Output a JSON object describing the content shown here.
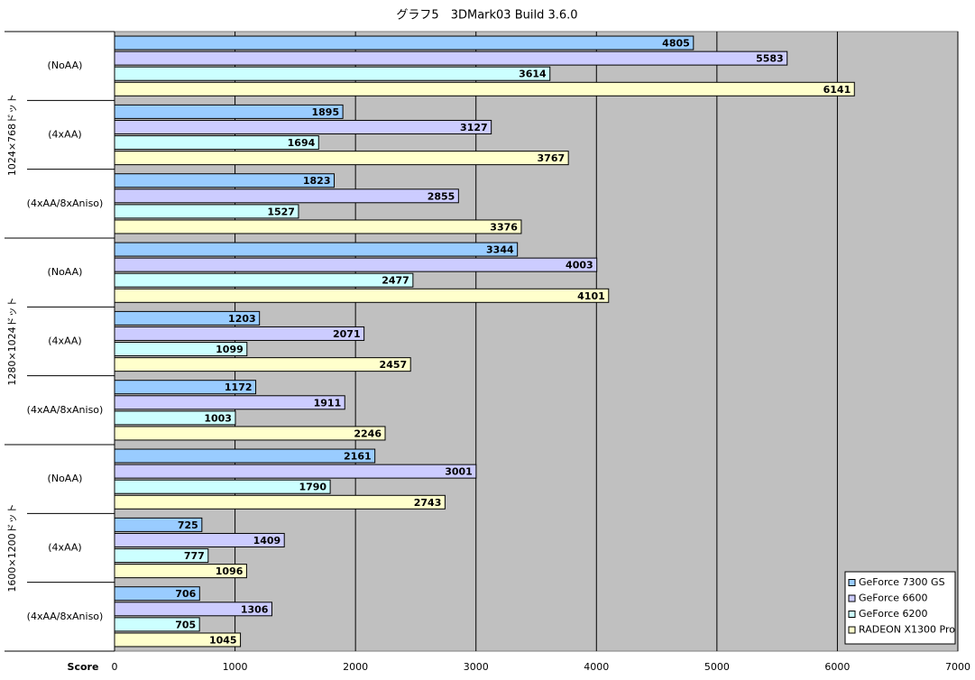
{
  "chart_data": {
    "type": "bar",
    "orientation": "horizontal",
    "title": "グラフ5　3DMark03  Build 3.6.0",
    "x_label": "Score",
    "category_groups": [
      "1024×768ドット",
      "1280×1024ドット",
      "1600×1200ドット"
    ],
    "categories": [
      "(NoAA)",
      "(4xAA)",
      "(4xAA/8xAniso)",
      "(NoAA)",
      "(4xAA)",
      "(4xAA/8xAniso)",
      "(NoAA)",
      "(4xAA)",
      "(4xAA/8xAniso)"
    ],
    "series": [
      {
        "name": "GeForce 7300 GS",
        "color": "#99ccff",
        "values": [
          4805,
          1895,
          1823,
          3344,
          1203,
          1172,
          2161,
          725,
          706
        ]
      },
      {
        "name": "GeForce 6600",
        "color": "#ccccff",
        "values": [
          5583,
          3127,
          2855,
          4003,
          2071,
          1911,
          3001,
          1409,
          1306
        ]
      },
      {
        "name": "GeForce 6200",
        "color": "#ccffff",
        "values": [
          3614,
          1694,
          1527,
          2477,
          1099,
          1003,
          1790,
          777,
          705
        ]
      },
      {
        "name": "RADEON X1300 Pro",
        "color": "#ffffcc",
        "values": [
          6141,
          3767,
          3376,
          4101,
          2457,
          2246,
          2743,
          1096,
          1045
        ]
      }
    ],
    "xlim": [
      0,
      7000
    ],
    "xticks": [
      0,
      1000,
      2000,
      3000,
      4000,
      5000,
      6000,
      7000
    ],
    "grid": true,
    "plot_background": "#c0c0c0",
    "legend": "bottom-right"
  }
}
